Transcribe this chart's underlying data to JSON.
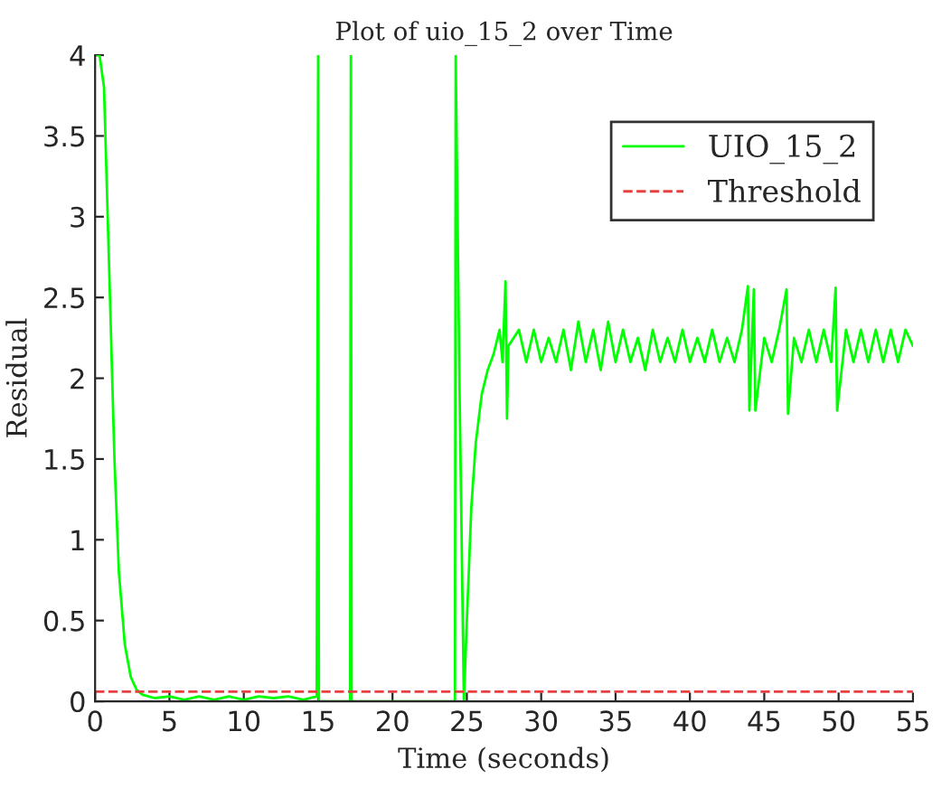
{
  "chart_data": {
    "type": "line",
    "title": "Plot of uio_15_2 over Time",
    "xlabel": "Time (seconds)",
    "ylabel": "Residual",
    "series": [
      {
        "name": "UIO_15_2",
        "color": "#00ff00",
        "x": [
          0,
          0.05,
          0.3,
          0.6,
          1.0,
          1.3,
          1.6,
          2.0,
          2.4,
          2.8,
          3.2,
          4,
          5,
          6,
          7,
          8,
          9,
          10,
          11,
          12,
          13,
          14,
          14.9,
          15.0,
          15.05,
          17.15,
          17.2,
          17.25,
          24.2,
          24.25,
          24.5,
          24.8,
          25.0,
          25.3,
          25.6,
          26.0,
          26.4,
          26.8,
          27.2,
          27.4,
          27.6,
          27.7,
          27.8,
          28.5,
          29,
          29.5,
          30,
          30.5,
          31,
          31.5,
          32,
          32.5,
          33,
          33.5,
          34,
          34.5,
          35,
          35.5,
          36,
          36.5,
          37,
          37.5,
          38,
          38.5,
          39,
          39.5,
          40,
          40.5,
          41,
          41.5,
          42,
          42.5,
          43,
          43.5,
          43.9,
          44.0,
          44.3,
          44.4,
          45,
          45.5,
          46,
          46.5,
          46.6,
          47,
          47.5,
          48,
          48.5,
          49,
          49.5,
          49.8,
          49.9,
          50.5,
          51,
          51.5,
          52,
          52.5,
          53,
          53.5,
          54,
          54.5,
          55
        ],
        "values": [
          4,
          4,
          4,
          3.8,
          2.5,
          1.5,
          0.8,
          0.35,
          0.15,
          0.07,
          0.04,
          0.02,
          0.03,
          0.01,
          0.03,
          0.01,
          0.03,
          0.01,
          0.03,
          0.02,
          0.03,
          0.01,
          0.03,
          4,
          0,
          0,
          4,
          0,
          0,
          4,
          2.0,
          0,
          0.5,
          1.2,
          1.6,
          1.9,
          2.05,
          2.15,
          2.3,
          2.1,
          2.6,
          1.75,
          2.2,
          2.3,
          2.1,
          2.3,
          2.1,
          2.25,
          2.1,
          2.3,
          2.05,
          2.35,
          2.1,
          2.3,
          2.05,
          2.35,
          2.1,
          2.3,
          2.1,
          2.25,
          2.05,
          2.3,
          2.1,
          2.25,
          2.1,
          2.3,
          2.1,
          2.25,
          2.1,
          2.3,
          2.1,
          2.25,
          2.1,
          2.3,
          2.57,
          1.8,
          2.55,
          1.8,
          2.25,
          2.1,
          2.3,
          2.55,
          1.78,
          2.25,
          2.1,
          2.3,
          2.1,
          2.3,
          2.1,
          2.56,
          1.8,
          2.3,
          2.1,
          2.3,
          2.1,
          2.3,
          2.1,
          2.3,
          2.1,
          2.3,
          2.2
        ]
      }
    ],
    "ref_lines": [
      {
        "axis": "y",
        "value": 0.06,
        "label": "Threshold",
        "color": "#e84040",
        "line_style": "dashed"
      }
    ],
    "xlim": [
      0,
      55
    ],
    "xticks": [
      0,
      5,
      10,
      15,
      20,
      25,
      30,
      35,
      40,
      45,
      50,
      55
    ],
    "ylim": [
      0,
      4
    ],
    "yticks": [
      0,
      0.5,
      1,
      1.5,
      2,
      2.5,
      3,
      3.5,
      4
    ],
    "grid": false,
    "legend": "top right",
    "line_style": "solid",
    "marker": "none"
  }
}
